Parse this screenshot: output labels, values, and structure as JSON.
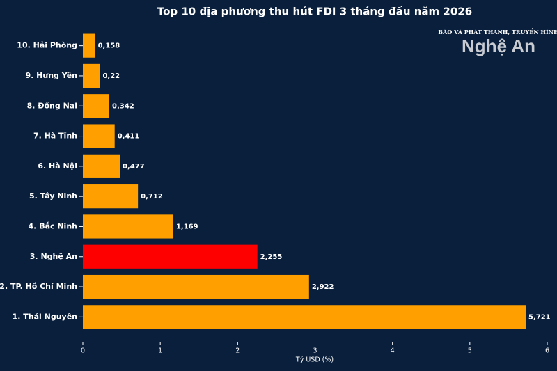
{
  "chart_data": {
    "type": "barh",
    "title": "Top 10 địa phương thu hút FDI 3 tháng đầu năm 2026",
    "xlabel": "Tỷ USD (%)",
    "categories": [
      "10. Hải Phòng",
      "9. Hưng Yên",
      "8. Đồng Nai",
      "7. Hà Tĩnh",
      "6. Hà Nội",
      "5. Tây Ninh",
      "4. Bắc Ninh",
      "3. Nghệ An",
      "2. TP. Hồ Chí Minh",
      "1. Thái Nguyên"
    ],
    "values": [
      0.158,
      0.22,
      0.342,
      0.411,
      0.477,
      0.712,
      1.169,
      2.255,
      2.922,
      5.721
    ],
    "value_labels": [
      "0,158",
      "0,22",
      "0,342",
      "0,411",
      "0,477",
      "0,712",
      "1,169",
      "2,255",
      "2,922",
      "5,721"
    ],
    "colors": [
      "#ffa000",
      "#ffa000",
      "#ffa000",
      "#ffa000",
      "#ffa000",
      "#ffa000",
      "#ffa000",
      "#ff0000",
      "#ffa000",
      "#ffa000"
    ],
    "xlim": [
      0,
      6
    ],
    "xticks": [
      0,
      1,
      2,
      3,
      4,
      5,
      6
    ],
    "grid": false
  },
  "logo": {
    "tagline": "BÁO VÀ PHÁT THANH, TRUYỀN HÌNH",
    "name": "Nghệ An"
  }
}
